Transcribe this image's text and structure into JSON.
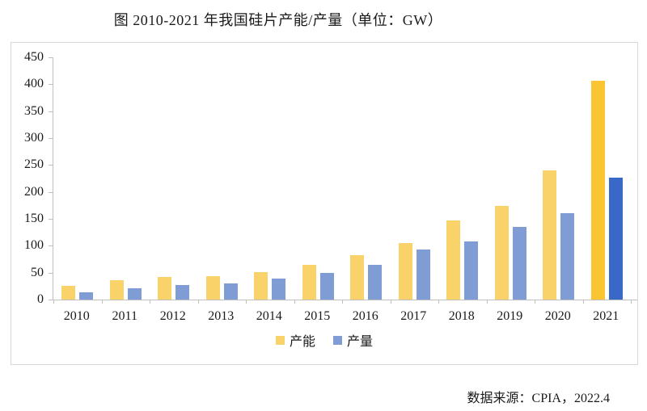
{
  "figure": {
    "title": "图 2010-2021 年我国硅片产能/产量（单位：GW）",
    "source": "数据来源：CPIA，2022.4"
  },
  "legend": {
    "capacity": "产能",
    "production": "产量"
  },
  "colors": {
    "capacity": "#F9D26A",
    "production": "#7F9CD5",
    "capacity_highlight": "#FBC433",
    "production_highlight": "#3A68C6",
    "axis": "#BFBFBF",
    "frame_border": "#D9D9D9",
    "text": "#1A1A1A"
  },
  "chart_data": {
    "type": "bar",
    "title": "图 2010-2021 年我国硅片产能/产量（单位：GW）",
    "unit": "GW",
    "categories": [
      "2010",
      "2011",
      "2012",
      "2013",
      "2014",
      "2015",
      "2016",
      "2017",
      "2018",
      "2019",
      "2020",
      "2021"
    ],
    "series": [
      {
        "name": "产能",
        "values": [
          25,
          36,
          42,
          43,
          51,
          65,
          82,
          105,
          147,
          174,
          240,
          407
        ]
      },
      {
        "name": "产量",
        "values": [
          13,
          21,
          27,
          30,
          39,
          49,
          65,
          93,
          108,
          135,
          161,
          227
        ]
      }
    ],
    "ylim": [
      0,
      450
    ],
    "yticks": [
      0,
      50,
      100,
      150,
      200,
      250,
      300,
      350,
      400,
      450
    ],
    "grid": false,
    "legend_position": "bottom",
    "highlight_category": "2021",
    "source_note": "数据来源：CPIA，2022.4"
  }
}
